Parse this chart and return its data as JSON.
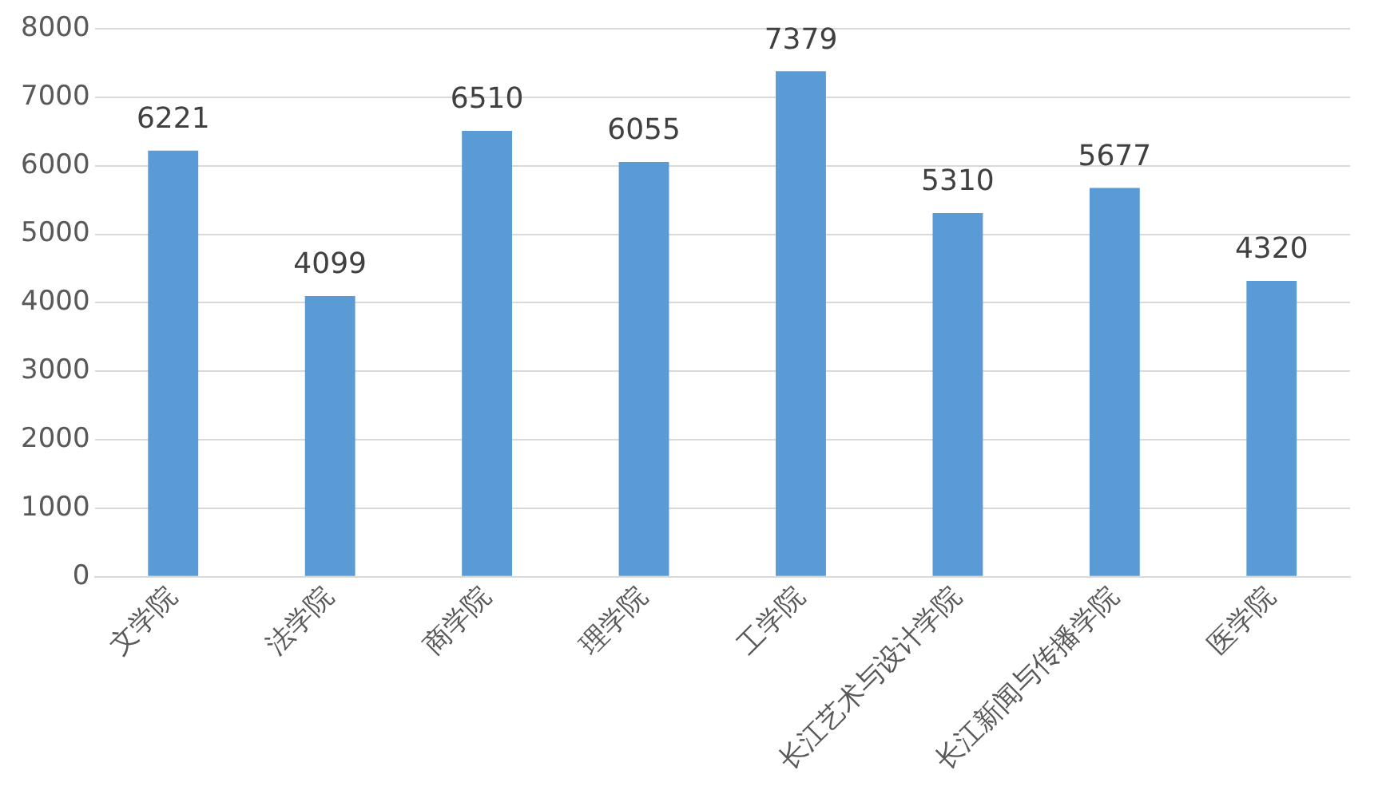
{
  "chart_data": {
    "type": "bar",
    "categories": [
      "文学院",
      "法学院",
      "商学院",
      "理学院",
      "工学院",
      "长江艺术与设计学院",
      "长江新闻与传播学院",
      "医学院"
    ],
    "values": [
      6221,
      4099,
      6510,
      6055,
      7379,
      5310,
      5677,
      4320
    ],
    "color": "#5b9bd5",
    "ylim": [
      0,
      8000
    ],
    "yticks": [
      0,
      1000,
      2000,
      3000,
      4000,
      5000,
      6000,
      7000,
      8000
    ],
    "grid": "y",
    "data_labels": true,
    "legend": false
  }
}
